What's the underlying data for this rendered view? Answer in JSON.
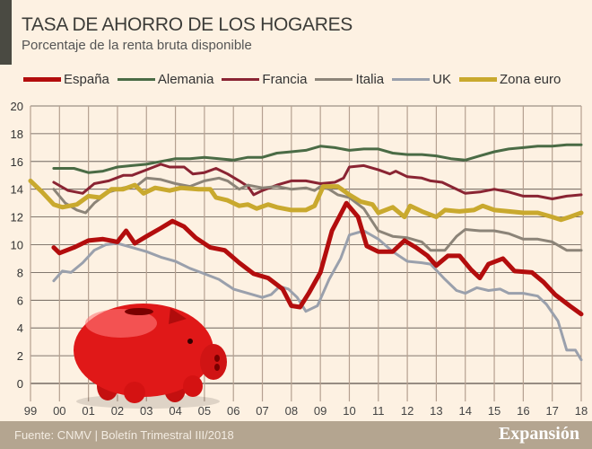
{
  "header": {
    "title": "TASA DE AHORRO DE LOS HOGARES",
    "subtitle": "Porcentaje de la renta bruta disponible"
  },
  "footer": {
    "source": "Fuente: CNMV | Boletín Trimestral  III/2018",
    "brand": "Expansión"
  },
  "illustration": "piggy-bank",
  "chart_data": {
    "type": "line",
    "title": "TASA DE AHORRO DE LOS HOGARES",
    "subtitle": "Porcentaje de la renta bruta disponible",
    "ylim": [
      0,
      20
    ],
    "yticks": [
      0,
      2,
      4,
      6,
      8,
      10,
      12,
      14,
      16,
      18,
      20
    ],
    "xlim": [
      1999,
      2018
    ],
    "xtick_labels": [
      "99",
      "00",
      "01",
      "02",
      "03",
      "04",
      "05",
      "06",
      "07",
      "08",
      "09",
      "10",
      "11",
      "12",
      "13",
      "14",
      "15",
      "16",
      "17",
      "18"
    ],
    "grid": true,
    "legend_placement": "top",
    "series": [
      {
        "name": "España",
        "color": "#b30d0d",
        "width": 5,
        "x": [
          1999.8,
          2000,
          2000.5,
          2001,
          2001.5,
          2002,
          2002.3,
          2002.6,
          2003,
          2003.5,
          2003.9,
          2004.3,
          2004.7,
          2005.2,
          2005.7,
          2006.2,
          2006.7,
          2007.2,
          2007.7,
          2008,
          2008.3,
          2008.6,
          2009,
          2009.4,
          2009.9,
          2010.3,
          2010.6,
          2011,
          2011.5,
          2011.9,
          2012.3,
          2012.7,
          2013,
          2013.4,
          2013.8,
          2014.2,
          2014.5,
          2014.8,
          2015.3,
          2015.7,
          2016.3,
          2016.7,
          2017.1,
          2017.6,
          2018
        ],
        "y": [
          9.8,
          9.4,
          9.8,
          10.3,
          10.4,
          10.2,
          11.0,
          10.1,
          10.6,
          11.2,
          11.7,
          11.3,
          10.5,
          9.8,
          9.6,
          8.7,
          7.9,
          7.6,
          6.8,
          5.6,
          5.5,
          6.5,
          8.0,
          11.0,
          13.0,
          12.0,
          9.9,
          9.5,
          9.5,
          10.3,
          9.8,
          9.2,
          8.5,
          9.2,
          9.2,
          8.2,
          7.6,
          8.6,
          9.0,
          8.1,
          8.0,
          7.3,
          6.4,
          5.6,
          5.0
        ]
      },
      {
        "name": "Alemania",
        "color": "#4a6b45",
        "width": 3,
        "x": [
          1999.8,
          2000.5,
          2001,
          2001.5,
          2002,
          2002.5,
          2003,
          2003.5,
          2004,
          2004.5,
          2005,
          2005.5,
          2006,
          2006.5,
          2007,
          2007.5,
          2008,
          2008.5,
          2009,
          2009.5,
          2010,
          2010.5,
          2011,
          2011.5,
          2012,
          2012.5,
          2013,
          2013.5,
          2014,
          2014.5,
          2015,
          2015.5,
          2016,
          2016.5,
          2017,
          2017.5,
          2018
        ],
        "y": [
          15.5,
          15.5,
          15.2,
          15.3,
          15.6,
          15.7,
          15.8,
          16.0,
          16.2,
          16.2,
          16.3,
          16.2,
          16.1,
          16.3,
          16.3,
          16.6,
          16.7,
          16.8,
          17.1,
          17.0,
          16.8,
          16.9,
          16.9,
          16.6,
          16.5,
          16.5,
          16.4,
          16.2,
          16.1,
          16.4,
          16.7,
          16.9,
          17.0,
          17.1,
          17.1,
          17.2,
          17.2
        ]
      },
      {
        "name": "Francia",
        "color": "#8a2433",
        "width": 3,
        "x": [
          1999.8,
          2000.3,
          2000.8,
          2001.2,
          2001.7,
          2002.2,
          2002.5,
          2003,
          2003.5,
          2003.8,
          2004.3,
          2004.6,
          2005,
          2005.4,
          2005.8,
          2006.2,
          2006.5,
          2006.7,
          2007,
          2007.5,
          2008,
          2008.5,
          2009,
          2009.5,
          2009.8,
          2010,
          2010.5,
          2011,
          2011.4,
          2011.6,
          2012,
          2012.5,
          2012.8,
          2013.2,
          2013.5,
          2014,
          2014.5,
          2015,
          2015.5,
          2016,
          2016.5,
          2017,
          2017.5,
          2018
        ],
        "y": [
          14.5,
          13.9,
          13.7,
          14.4,
          14.6,
          15.0,
          15.0,
          15.4,
          15.8,
          15.6,
          15.6,
          15.1,
          15.2,
          15.5,
          15.1,
          14.6,
          14.2,
          13.6,
          13.9,
          14.3,
          14.6,
          14.6,
          14.4,
          14.5,
          14.8,
          15.6,
          15.7,
          15.4,
          15.1,
          15.3,
          14.9,
          14.8,
          14.6,
          14.5,
          14.2,
          13.7,
          13.8,
          14.0,
          13.8,
          13.5,
          13.5,
          13.3,
          13.5,
          13.6
        ]
      },
      {
        "name": "Italia",
        "color": "#8c8478",
        "width": 3,
        "x": [
          1999.8,
          2000.2,
          2000.6,
          2000.9,
          2001.2,
          2001.7,
          2002.2,
          2002.7,
          2003,
          2003.5,
          2004,
          2004.5,
          2005,
          2005.5,
          2005.8,
          2006.2,
          2006.5,
          2007,
          2007.5,
          2008,
          2008.5,
          2008.8,
          2009,
          2009.3,
          2009.6,
          2010,
          2010.5,
          2011,
          2011.5,
          2012,
          2012.5,
          2012.8,
          2013.3,
          2013.7,
          2014,
          2014.5,
          2015,
          2015.5,
          2016,
          2016.5,
          2017,
          2017.5,
          2018
        ],
        "y": [
          14.0,
          13.0,
          12.5,
          12.3,
          13.0,
          13.8,
          14.1,
          14.3,
          14.8,
          14.7,
          14.4,
          14.2,
          14.6,
          14.8,
          14.6,
          14.0,
          14.3,
          14.1,
          14.2,
          14.0,
          14.1,
          13.9,
          14.2,
          14.0,
          13.6,
          13.4,
          12.6,
          11.0,
          10.6,
          10.5,
          10.2,
          9.6,
          9.6,
          10.6,
          11.1,
          11.0,
          11.0,
          10.8,
          10.4,
          10.4,
          10.2,
          9.6,
          9.6
        ]
      },
      {
        "name": "UK",
        "color": "#9aa0ac",
        "width": 3,
        "x": [
          1999.8,
          2000.1,
          2000.4,
          2000.8,
          2001.2,
          2001.6,
          2002,
          2002.5,
          2003,
          2003.5,
          2004,
          2004.5,
          2005,
          2005.5,
          2006,
          2006.5,
          2007,
          2007.3,
          2007.6,
          2007.9,
          2008.2,
          2008.5,
          2008.9,
          2009.3,
          2009.7,
          2010,
          2010.5,
          2011,
          2011.5,
          2012,
          2012.5,
          2012.8,
          2013.3,
          2013.7,
          2014,
          2014.4,
          2014.8,
          2015.2,
          2015.5,
          2016,
          2016.5,
          2016.8,
          2017.2,
          2017.5,
          2017.8,
          2018
        ],
        "y": [
          7.4,
          8.1,
          8.0,
          8.7,
          9.6,
          10.0,
          10.1,
          9.8,
          9.5,
          9.1,
          8.8,
          8.3,
          7.9,
          7.5,
          6.8,
          6.5,
          6.2,
          6.4,
          7.0,
          6.8,
          6.2,
          5.2,
          5.6,
          7.5,
          9.0,
          10.7,
          11.0,
          10.4,
          9.5,
          8.8,
          8.7,
          8.6,
          7.5,
          6.7,
          6.5,
          6.9,
          6.7,
          6.8,
          6.5,
          6.5,
          6.3,
          5.7,
          4.5,
          2.4,
          2.4,
          1.7
        ]
      },
      {
        "name": "Zona euro",
        "color": "#c9a92e",
        "width": 5,
        "x": [
          1999,
          1999.4,
          1999.8,
          2000.1,
          2000.6,
          2001,
          2001.4,
          2001.8,
          2002.2,
          2002.6,
          2002.9,
          2003.3,
          2003.8,
          2004.2,
          2004.8,
          2005.2,
          2005.4,
          2005.8,
          2006.2,
          2006.5,
          2006.8,
          2007.2,
          2007.5,
          2008,
          2008.5,
          2008.8,
          2009.1,
          2009.6,
          2010,
          2010.4,
          2010.8,
          2011,
          2011.5,
          2011.9,
          2012.1,
          2012.5,
          2013,
          2013.3,
          2013.8,
          2014.3,
          2014.6,
          2015,
          2015.5,
          2016,
          2016.5,
          2017,
          2017.3,
          2017.6,
          2018
        ],
        "y": [
          14.6,
          13.8,
          12.9,
          12.7,
          12.9,
          13.5,
          13.4,
          14.0,
          14.0,
          14.3,
          13.7,
          14.1,
          13.9,
          14.1,
          14.0,
          14.0,
          13.4,
          13.2,
          12.8,
          12.9,
          12.6,
          12.9,
          12.7,
          12.5,
          12.5,
          12.8,
          14.2,
          14.2,
          13.6,
          13.1,
          12.9,
          12.3,
          12.7,
          12.0,
          12.8,
          12.4,
          12.0,
          12.5,
          12.4,
          12.5,
          12.8,
          12.5,
          12.4,
          12.3,
          12.3,
          12.0,
          11.8,
          12.0,
          12.3
        ]
      }
    ]
  }
}
